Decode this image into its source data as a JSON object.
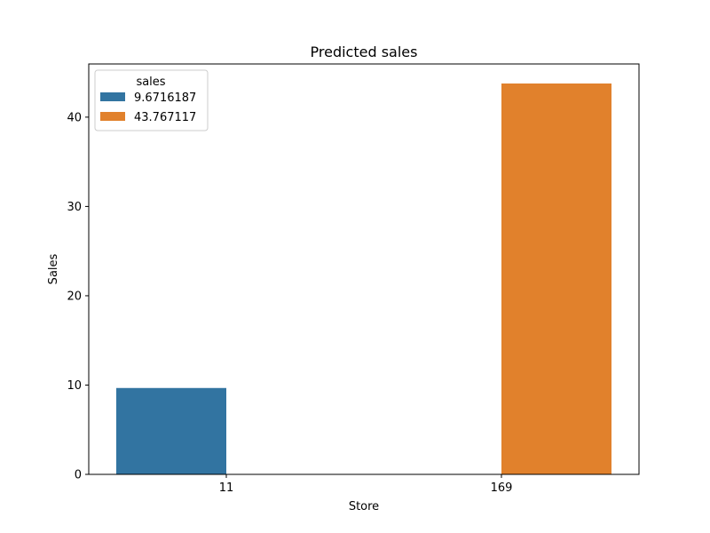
{
  "chart_data": {
    "type": "bar",
    "title": "Predicted sales",
    "xlabel": "Store",
    "ylabel": "Sales",
    "categories": [
      "11",
      "169"
    ],
    "series": [
      {
        "name": "9.6716187",
        "values": [
          9.6716187,
          null
        ],
        "color": "#3274a1"
      },
      {
        "name": "43.767117",
        "values": [
          null,
          43.767117
        ],
        "color": "#e1812c"
      }
    ],
    "ylim": [
      0,
      45.95547285
    ],
    "yticks": [
      0,
      10,
      20,
      30,
      40
    ],
    "legend": {
      "title": "sales",
      "placement": "top-left"
    },
    "grid": false
  }
}
